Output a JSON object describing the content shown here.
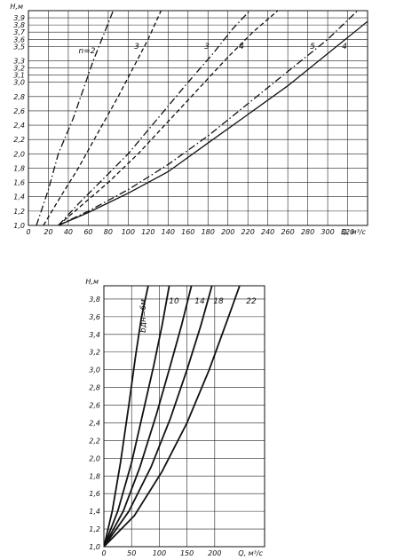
{
  "chart_data": [
    {
      "type": "line",
      "xlabel": "Q, м³/с",
      "ylabel": "H,м",
      "xlim": [
        0,
        340
      ],
      "ylim": [
        1.0,
        4.0
      ],
      "x_ticks": [
        "0",
        "20",
        "40",
        "60",
        "80",
        "100",
        "120",
        "140",
        "160",
        "180",
        "200",
        "220",
        "240",
        "260",
        "280",
        "300",
        "320"
      ],
      "y_ticks": [
        "1,0",
        "1,2",
        "1,4",
        "1,6",
        "1,8",
        "2,0",
        "2,2",
        "2,4",
        "2,6",
        "2,8",
        "3,0",
        "3,1",
        "3,2",
        "3,3",
        "3,5",
        "3,6",
        "3,7",
        "3,8",
        "3,9"
      ],
      "x_tick_values": [
        0,
        20,
        40,
        60,
        80,
        100,
        120,
        140,
        160,
        180,
        200,
        220,
        240,
        260,
        280,
        300,
        320
      ],
      "y_tick_values": [
        1.0,
        1.2,
        1.4,
        1.6,
        1.8,
        2.0,
        2.2,
        2.4,
        2.6,
        2.8,
        3.0,
        3.1,
        3.2,
        3.3,
        3.5,
        3.6,
        3.7,
        3.8,
        3.9
      ],
      "series": [
        {
          "name": "n=2",
          "dash": "8,3,1.5,3",
          "points": [
            [
              8,
              1.0
            ],
            [
              20,
              1.5
            ],
            [
              30,
              2.0
            ],
            [
              45,
              2.5
            ],
            [
              55,
              2.9
            ],
            [
              65,
              3.3
            ],
            [
              75,
              3.65
            ],
            [
              85,
              4.0
            ]
          ]
        },
        {
          "name": "3",
          "dash": "5,3",
          "points": [
            [
              15,
              1.0
            ],
            [
              30,
              1.35
            ],
            [
              50,
              1.8
            ],
            [
              70,
              2.3
            ],
            [
              90,
              2.8
            ],
            [
              105,
              3.2
            ],
            [
              120,
              3.6
            ],
            [
              133,
              4.0
            ]
          ]
        },
        {
          "name": "3",
          "dash": "8,3,1.5,3",
          "points": [
            [
              30,
              1.0
            ],
            [
              50,
              1.3
            ],
            [
              75,
              1.65
            ],
            [
              100,
              2.0
            ],
            [
              130,
              2.5
            ],
            [
              160,
              3.0
            ],
            [
              185,
              3.4
            ],
            [
              205,
              3.75
            ],
            [
              222,
              4.0
            ]
          ]
        },
        {
          "name": "4",
          "dash": "5,3",
          "points": [
            [
              30,
              1.0
            ],
            [
              55,
              1.3
            ],
            [
              80,
              1.6
            ],
            [
              110,
              2.0
            ],
            [
              140,
              2.45
            ],
            [
              170,
              2.9
            ],
            [
              200,
              3.35
            ],
            [
              225,
              3.7
            ],
            [
              250,
              4.0
            ]
          ]
        },
        {
          "name": "5",
          "dash": "8,3,1.5,3",
          "points": [
            [
              30,
              1.0
            ],
            [
              60,
              1.2
            ],
            [
              100,
              1.5
            ],
            [
              140,
              1.85
            ],
            [
              180,
              2.25
            ],
            [
              220,
              2.7
            ],
            [
              260,
              3.15
            ],
            [
              300,
              3.6
            ],
            [
              330,
              4.0
            ]
          ]
        },
        {
          "name": "4",
          "dash": "",
          "points": [
            [
              30,
              1.0
            ],
            [
              60,
              1.18
            ],
            [
              100,
              1.45
            ],
            [
              140,
              1.75
            ],
            [
              180,
              2.15
            ],
            [
              220,
              2.55
            ],
            [
              260,
              2.95
            ],
            [
              300,
              3.4
            ],
            [
              340,
              3.85
            ]
          ]
        }
      ]
    },
    {
      "type": "line",
      "xlabel": "Q, м³/с",
      "ylabel": "H,м",
      "xlim": [
        0,
        290
      ],
      "ylim": [
        1.0,
        3.95
      ],
      "x_ticks": [
        "0",
        "50",
        "100",
        "150",
        "200"
      ],
      "y_ticks": [
        "1,0",
        "1,2",
        "1,4",
        "1,6",
        "1,8",
        "2,0",
        "2,2",
        "2,4",
        "2,6",
        "2,8",
        "3,0",
        "3,2",
        "3,4",
        "3,6",
        "3,8"
      ],
      "x_tick_values": [
        0,
        50,
        100,
        150,
        200
      ],
      "y_tick_values": [
        1.0,
        1.2,
        1.4,
        1.6,
        1.8,
        2.0,
        2.2,
        2.4,
        2.6,
        2.8,
        3.0,
        3.2,
        3.4,
        3.6,
        3.8
      ],
      "series": [
        {
          "name": "bдн=6м",
          "points": [
            [
              0,
              1.0
            ],
            [
              15,
              1.4
            ],
            [
              30,
              1.95
            ],
            [
              45,
              2.6
            ],
            [
              57,
              3.15
            ],
            [
              68,
              3.6
            ],
            [
              80,
              3.95
            ]
          ]
        },
        {
          "name": "10",
          "points": [
            [
              0,
              1.0
            ],
            [
              25,
              1.4
            ],
            [
              50,
              1.95
            ],
            [
              70,
              2.5
            ],
            [
              90,
              3.05
            ],
            [
              105,
              3.5
            ],
            [
              118,
              3.95
            ]
          ]
        },
        {
          "name": "14",
          "points": [
            [
              0,
              1.0
            ],
            [
              35,
              1.4
            ],
            [
              65,
              1.9
            ],
            [
              95,
              2.5
            ],
            [
              120,
              3.05
            ],
            [
              140,
              3.5
            ],
            [
              158,
              3.95
            ]
          ]
        },
        {
          "name": "18",
          "points": [
            [
              0,
              1.0
            ],
            [
              45,
              1.4
            ],
            [
              85,
              1.9
            ],
            [
              120,
              2.45
            ],
            [
              150,
              3.0
            ],
            [
              175,
              3.5
            ],
            [
              195,
              3.95
            ]
          ]
        },
        {
          "name": "22",
          "points": [
            [
              0,
              1.0
            ],
            [
              55,
              1.35
            ],
            [
              105,
              1.85
            ],
            [
              150,
              2.4
            ],
            [
              190,
              3.0
            ],
            [
              225,
              3.6
            ],
            [
              245,
              3.95
            ]
          ]
        }
      ]
    }
  ]
}
